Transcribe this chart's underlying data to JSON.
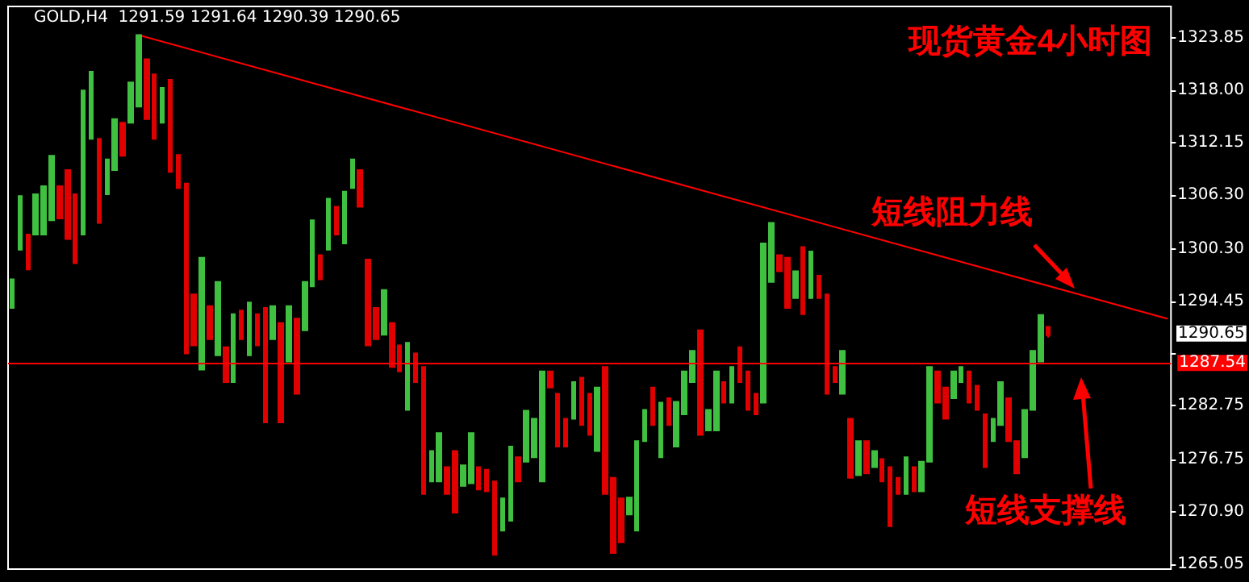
{
  "chart_data": {
    "type": "candlestick",
    "title": "现货黄金4小时图",
    "subtitle": "GOLD,H4  1291.59 1291.64 1290.39 1290.65",
    "categories": [
      null,
      null,
      null,
      null,
      null,
      null,
      null,
      null,
      null,
      null,
      null,
      null,
      null,
      null,
      null,
      null,
      null,
      null,
      null,
      null,
      null,
      null,
      null,
      null,
      null,
      null,
      null,
      null,
      null,
      null,
      null,
      null,
      null,
      null,
      null,
      null,
      null,
      null,
      null,
      null,
      null,
      null,
      null,
      null,
      null,
      null,
      null,
      null,
      null,
      null,
      null,
      null,
      null,
      null,
      null,
      null,
      null,
      null,
      null,
      null,
      null,
      null,
      null,
      null,
      null,
      null,
      null,
      null,
      null,
      null,
      null,
      null,
      null,
      null,
      null,
      null,
      null,
      null,
      null,
      null,
      null,
      null,
      null,
      null,
      null,
      null,
      null,
      null,
      null,
      null,
      null,
      null,
      null,
      null,
      null,
      null,
      null,
      null,
      null,
      null,
      null,
      null,
      null,
      null,
      null,
      null,
      null,
      null,
      null,
      null,
      null,
      null,
      null,
      null,
      null,
      null,
      null,
      null,
      null,
      null,
      null,
      null,
      null,
      null,
      null,
      null,
      null,
      null,
      null,
      null,
      null,
      null,
      null,
      null,
      null,
      null,
      null,
      null,
      null,
      null,
      null,
      null,
      null,
      null,
      null,
      null,
      null
    ],
    "ohlc": [
      [
        1293.7,
        1296.9,
        1293.7,
        1296.9
      ],
      [
        1300.2,
        1306.2,
        1300.2,
        1306.2
      ],
      [
        1301.9,
        1301.9,
        1298.0,
        1298.0
      ],
      [
        1301.9,
        1306.4,
        1301.9,
        1306.4
      ],
      [
        1301.9,
        1307.3,
        1301.9,
        1307.3
      ],
      [
        1303.5,
        1310.7,
        1303.5,
        1310.7
      ],
      [
        1307.3,
        1307.3,
        1303.7,
        1303.7
      ],
      [
        1309.1,
        1309.1,
        1301.4,
        1301.4
      ],
      [
        1306.4,
        1306.4,
        1298.7,
        1298.7
      ],
      [
        1301.9,
        1318.0,
        1301.9,
        1318.0
      ],
      [
        1312.6,
        1320.1,
        1312.6,
        1320.1
      ],
      [
        1312.6,
        1312.6,
        1303.2,
        1303.2
      ],
      [
        1306.4,
        1310.3,
        1306.4,
        1310.3
      ],
      [
        1309.1,
        1314.8,
        1309.1,
        1314.8
      ],
      [
        1314.4,
        1314.4,
        1310.7,
        1310.7
      ],
      [
        1314.4,
        1318.9,
        1314.4,
        1318.9
      ],
      [
        1316.2,
        1324.2,
        1316.2,
        1324.2
      ],
      [
        1321.5,
        1321.5,
        1314.8,
        1314.8
      ],
      [
        1319.8,
        1319.8,
        1312.6,
        1312.6
      ],
      [
        1314.4,
        1318.3,
        1314.4,
        1318.3
      ],
      [
        1319.2,
        1319.2,
        1308.9,
        1308.9
      ],
      [
        1310.8,
        1310.8,
        1307.1,
        1307.1
      ],
      [
        1307.6,
        1307.6,
        1288.6,
        1288.6
      ],
      [
        1295.2,
        1295.2,
        1289.5,
        1289.5
      ],
      [
        1286.8,
        1299.3,
        1286.8,
        1299.3
      ],
      [
        1293.9,
        1293.9,
        1290.2,
        1290.2
      ],
      [
        1288.4,
        1296.6,
        1288.4,
        1296.6
      ],
      [
        1289.3,
        1289.3,
        1285.4,
        1285.4
      ],
      [
        1285.4,
        1293.0,
        1285.4,
        1293.0
      ],
      [
        1293.4,
        1293.4,
        1290.2,
        1290.2
      ],
      [
        1288.4,
        1294.3,
        1288.4,
        1294.3
      ],
      [
        1293.0,
        1293.0,
        1289.5,
        1289.5
      ],
      [
        1293.7,
        1293.7,
        1280.9,
        1280.9
      ],
      [
        1290.2,
        1293.9,
        1290.2,
        1293.9
      ],
      [
        1292.0,
        1292.0,
        1280.9,
        1280.9
      ],
      [
        1287.7,
        1293.9,
        1287.7,
        1293.9
      ],
      [
        1292.5,
        1292.5,
        1284.1,
        1284.1
      ],
      [
        1291.2,
        1296.6,
        1291.2,
        1296.6
      ],
      [
        1296.1,
        1303.5,
        1296.1,
        1303.5
      ],
      [
        1299.6,
        1299.6,
        1296.9,
        1296.9
      ],
      [
        1300.2,
        1305.9,
        1300.2,
        1305.9
      ],
      [
        1305.0,
        1305.0,
        1301.9,
        1301.9
      ],
      [
        1300.9,
        1306.7,
        1300.9,
        1306.7
      ],
      [
        1307.1,
        1310.3,
        1307.1,
        1310.3
      ],
      [
        1309.1,
        1309.1,
        1305.0,
        1305.0
      ],
      [
        1299.1,
        1299.1,
        1289.5,
        1289.5
      ],
      [
        1293.7,
        1293.7,
        1290.2,
        1290.2
      ],
      [
        1290.7,
        1295.7,
        1290.7,
        1295.7
      ],
      [
        1292.0,
        1292.0,
        1287.1,
        1287.1
      ],
      [
        1289.5,
        1289.5,
        1286.6,
        1286.6
      ],
      [
        1282.3,
        1289.8,
        1282.3,
        1289.8
      ],
      [
        1288.6,
        1288.6,
        1285.4,
        1285.4
      ],
      [
        1287.1,
        1287.1,
        1272.9,
        1272.9
      ],
      [
        1274.3,
        1277.7,
        1274.3,
        1277.7
      ],
      [
        1274.3,
        1279.7,
        1274.3,
        1279.7
      ],
      [
        1275.9,
        1275.9,
        1272.9,
        1272.9
      ],
      [
        1277.7,
        1277.7,
        1270.8,
        1270.8
      ],
      [
        1273.8,
        1276.1,
        1273.8,
        1276.1
      ],
      [
        1274.1,
        1279.7,
        1274.1,
        1279.7
      ],
      [
        1275.9,
        1275.9,
        1273.4,
        1273.4
      ],
      [
        1275.6,
        1275.6,
        1273.2,
        1273.2
      ],
      [
        1274.3,
        1274.3,
        1266.1,
        1266.1
      ],
      [
        1268.8,
        1272.4,
        1268.8,
        1272.4
      ],
      [
        1269.9,
        1278.2,
        1269.9,
        1278.2
      ],
      [
        1277.0,
        1277.0,
        1274.3,
        1274.3
      ],
      [
        1276.5,
        1282.2,
        1276.5,
        1282.2
      ],
      [
        1277.0,
        1281.3,
        1277.0,
        1281.3
      ],
      [
        1274.3,
        1286.6,
        1274.3,
        1286.6
      ],
      [
        1286.6,
        1286.6,
        1284.8,
        1284.8
      ],
      [
        1284.1,
        1284.1,
        1278.2,
        1278.2
      ],
      [
        1281.3,
        1281.3,
        1278.2,
        1278.2
      ],
      [
        1281.3,
        1285.4,
        1281.3,
        1285.4
      ],
      [
        1285.9,
        1285.9,
        1280.6,
        1280.6
      ],
      [
        1284.1,
        1284.1,
        1279.5,
        1279.5
      ],
      [
        1277.7,
        1284.8,
        1277.7,
        1284.8
      ],
      [
        1287.1,
        1287.1,
        1272.9,
        1272.9
      ],
      [
        1274.7,
        1274.7,
        1266.3,
        1266.3
      ],
      [
        1272.4,
        1272.4,
        1267.5,
        1267.5
      ],
      [
        1270.6,
        1272.5,
        1270.6,
        1272.5
      ],
      [
        1268.8,
        1278.8,
        1268.8,
        1278.8
      ],
      [
        1278.8,
        1282.3,
        1278.8,
        1282.3
      ],
      [
        1284.8,
        1284.8,
        1280.6,
        1280.6
      ],
      [
        1277.0,
        1283.1,
        1277.0,
        1283.1
      ],
      [
        1283.6,
        1283.6,
        1280.6,
        1280.6
      ],
      [
        1278.2,
        1283.2,
        1278.2,
        1283.2
      ],
      [
        1281.8,
        1286.6,
        1281.8,
        1286.6
      ],
      [
        1285.4,
        1288.9,
        1285.4,
        1288.9
      ],
      [
        1291.2,
        1291.2,
        1279.5,
        1279.5
      ],
      [
        1280.0,
        1282.3,
        1280.0,
        1282.3
      ],
      [
        1280.0,
        1286.6,
        1280.0,
        1286.6
      ],
      [
        1285.4,
        1285.4,
        1283.1,
        1283.1
      ],
      [
        1283.1,
        1287.1,
        1283.1,
        1287.1
      ],
      [
        1289.3,
        1289.3,
        1285.4,
        1285.4
      ],
      [
        1286.6,
        1286.6,
        1282.3,
        1282.3
      ],
      [
        1284.1,
        1284.1,
        1281.8,
        1281.8
      ],
      [
        1283.1,
        1300.9,
        1283.1,
        1300.9
      ],
      [
        1296.6,
        1303.2,
        1296.6,
        1303.2
      ],
      [
        1299.6,
        1299.6,
        1297.8,
        1297.8
      ],
      [
        1299.3,
        1299.3,
        1293.7,
        1293.7
      ],
      [
        1294.8,
        1297.8,
        1294.8,
        1297.8
      ],
      [
        1300.5,
        1300.5,
        1293.0,
        1293.0
      ],
      [
        1294.8,
        1300.0,
        1294.8,
        1300.0
      ],
      [
        1297.3,
        1297.3,
        1294.8,
        1294.8
      ],
      [
        1295.2,
        1295.2,
        1284.1,
        1284.1
      ],
      [
        1287.1,
        1287.1,
        1285.4,
        1285.4
      ],
      [
        1284.1,
        1288.9,
        1284.1,
        1288.9
      ],
      [
        1281.3,
        1281.3,
        1274.7,
        1274.7
      ],
      [
        1275.0,
        1278.8,
        1275.0,
        1278.8
      ],
      [
        1278.8,
        1278.8,
        1275.2,
        1275.2
      ],
      [
        1275.9,
        1277.7,
        1275.9,
        1277.7
      ],
      [
        1276.8,
        1276.8,
        1274.3,
        1274.3
      ],
      [
        1275.9,
        1275.9,
        1269.3,
        1269.3
      ],
      [
        1274.7,
        1274.7,
        1272.9,
        1272.9
      ],
      [
        1272.9,
        1277.0,
        1272.9,
        1277.0
      ],
      [
        1275.9,
        1275.9,
        1273.2,
        1273.2
      ],
      [
        1273.2,
        1276.5,
        1273.2,
        1276.5
      ],
      [
        1276.5,
        1287.1,
        1276.5,
        1287.1
      ],
      [
        1286.6,
        1286.6,
        1283.1,
        1283.1
      ],
      [
        1284.8,
        1284.8,
        1281.3,
        1281.3
      ],
      [
        1283.6,
        1286.6,
        1283.6,
        1286.6
      ],
      [
        1285.4,
        1287.1,
        1285.4,
        1287.1
      ],
      [
        1286.6,
        1286.6,
        1283.1,
        1283.1
      ],
      [
        1285.0,
        1285.0,
        1282.3,
        1282.3
      ],
      [
        1281.8,
        1281.8,
        1275.9,
        1275.9
      ],
      [
        1278.8,
        1281.3,
        1278.8,
        1281.3
      ],
      [
        1280.6,
        1285.4,
        1280.6,
        1285.4
      ],
      [
        1283.6,
        1283.6,
        1278.8,
        1278.8
      ],
      [
        1278.8,
        1278.8,
        1275.2,
        1275.2
      ],
      [
        1277.0,
        1282.3,
        1277.0,
        1282.3
      ],
      [
        1282.3,
        1288.9,
        1282.3,
        1288.9
      ],
      [
        1287.7,
        1292.9,
        1287.7,
        1292.9
      ],
      [
        1291.59,
        1291.64,
        1290.39,
        1290.65
      ],
      null,
      null,
      null,
      null,
      null,
      null,
      null,
      null,
      null,
      null,
      null,
      null,
      null,
      null,
      null
    ],
    "colors": [
      "#40c040",
      "#40c040",
      "#e00000",
      "#40c040",
      "#40c040",
      "#40c040",
      "#e00000",
      "#e00000",
      "#e00000",
      "#40c040",
      "#40c040",
      "#e00000",
      "#40c040",
      "#40c040",
      "#e00000",
      "#40c040",
      "#40c040",
      "#e00000",
      "#e00000",
      "#40c040",
      "#e00000",
      "#e00000",
      "#e00000",
      "#e00000",
      "#40c040",
      "#e00000",
      "#40c040",
      "#e00000",
      "#40c040",
      "#e00000",
      "#40c040",
      "#e00000",
      "#e00000",
      "#40c040",
      "#e00000",
      "#40c040",
      "#e00000",
      "#40c040",
      "#40c040",
      "#e00000",
      "#40c040",
      "#e00000",
      "#40c040",
      "#40c040",
      "#e00000",
      "#e00000",
      "#e00000",
      "#40c040",
      "#e00000",
      "#e00000",
      "#40c040",
      "#e00000",
      "#e00000",
      "#40c040",
      "#40c040",
      "#e00000",
      "#e00000",
      "#40c040",
      "#40c040",
      "#e00000",
      "#e00000",
      "#e00000",
      "#40c040",
      "#40c040",
      "#e00000",
      "#40c040",
      "#40c040",
      "#40c040",
      "#e00000",
      "#e00000",
      "#e00000",
      "#40c040",
      "#e00000",
      "#e00000",
      "#40c040",
      "#e00000",
      "#e00000",
      "#e00000",
      "#40c040",
      "#40c040",
      "#40c040",
      "#e00000",
      "#40c040",
      "#e00000",
      "#40c040",
      "#40c040",
      "#40c040",
      "#e00000",
      "#40c040",
      "#40c040",
      "#e00000",
      "#40c040",
      "#e00000",
      "#e00000",
      "#e00000",
      "#40c040",
      "#40c040",
      "#e00000",
      "#e00000",
      "#40c040",
      "#e00000",
      "#40c040",
      "#e00000",
      "#e00000",
      "#e00000",
      "#40c040",
      "#e00000",
      "#40c040",
      "#e00000",
      "#40c040",
      "#e00000",
      "#e00000",
      "#e00000",
      "#40c040",
      "#e00000",
      "#40c040",
      "#40c040",
      "#e00000",
      "#e00000",
      "#40c040",
      "#40c040",
      "#e00000",
      "#e00000",
      "#e00000",
      "#40c040",
      "#40c040",
      "#e00000",
      "#e00000",
      "#40c040",
      "#40c040",
      "#40c040",
      "#e00000",
      null,
      null,
      null,
      null,
      null,
      null,
      null,
      null,
      null,
      null,
      null,
      null,
      null,
      null,
      null
    ],
    "series": [
      {
        "type": "line",
        "color": "#ff0000",
        "line_style": "solid",
        "marker": "none",
        "values": [
          null,
          null,
          null,
          null,
          null,
          null,
          null,
          null,
          null,
          null,
          null,
          null,
          null,
          null,
          null,
          null,
          1324.2,
          null,
          null,
          null,
          null,
          null,
          null,
          null,
          null,
          null,
          null,
          null,
          null,
          null,
          null,
          null,
          null,
          null,
          null,
          null,
          null,
          null,
          null,
          null,
          null,
          null,
          null,
          null,
          null,
          null,
          null,
          null,
          null,
          null,
          null,
          null,
          null,
          null,
          null,
          null,
          null,
          null,
          null,
          null,
          null,
          null,
          null,
          null,
          null,
          null,
          null,
          null,
          null,
          null,
          null,
          null,
          null,
          null,
          null,
          null,
          null,
          null,
          null,
          null,
          null,
          null,
          null,
          null,
          null,
          null,
          null,
          null,
          null,
          null,
          null,
          null,
          null,
          null,
          null,
          null,
          null,
          null,
          null,
          null,
          null,
          null,
          null,
          null,
          null,
          null,
          null,
          null,
          null,
          null,
          null,
          null,
          null,
          null,
          null,
          null,
          null,
          null,
          null,
          null,
          null,
          null,
          null,
          null,
          null,
          null,
          null,
          null,
          null,
          null,
          null,
          null,
          null,
          null,
          null,
          null,
          null,
          null,
          null,
          null,
          null,
          null,
          null,
          null,
          null,
          null,
          1292.5
        ]
      }
    ],
    "ref_lines": [
      {
        "axis": "y",
        "value": 1287.54,
        "label": "1287.54",
        "color": "#ff0000",
        "line_style": "solid"
      }
    ],
    "annotations": [
      "短线阻力线",
      "短线支撑线",
      "1290.65"
    ],
    "ylim": [
      1264.5,
      1327.4
    ],
    "yticks": [
      1323.85,
      {
        "value": 1318,
        "label": "1318.00"
      },
      1312.15,
      {
        "value": 1306.3,
        "label": "1306.30"
      },
      {
        "value": 1300.3,
        "label": "1300.30"
      },
      1294.45,
      {
        "value": 1288.6,
        "label": null
      },
      1282.75,
      1276.75,
      {
        "value": 1270.9,
        "label": "1270.90"
      },
      1265.05
    ],
    "grid": false
  }
}
